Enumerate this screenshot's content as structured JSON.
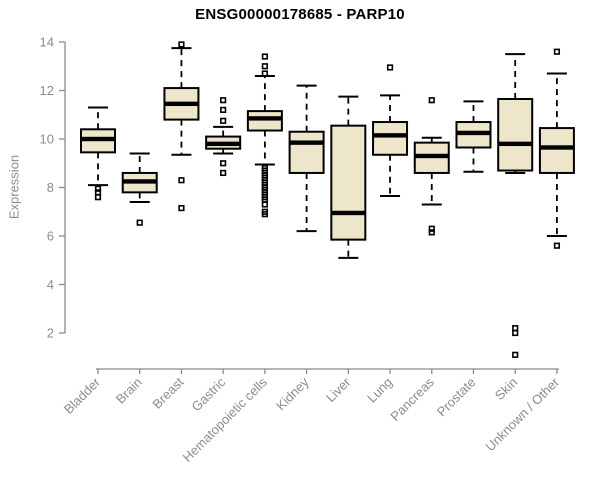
{
  "chart_data": {
    "type": "boxplot",
    "title": "ENSG00000178685 - PARP10",
    "ylabel": "Expression",
    "ylim": [
      2,
      14
    ],
    "yticks": [
      2,
      4,
      6,
      8,
      10,
      12,
      14
    ],
    "grid": false,
    "legend": null,
    "categories": [
      "Bladder",
      "Brain",
      "Breast",
      "Gastric",
      "Hematopoietic cells",
      "Kidney",
      "Liver",
      "Lung",
      "Pancreas",
      "Prostate",
      "Skin",
      "Unknown / Other"
    ],
    "boxes": [
      {
        "category": "Bladder",
        "whisker_low": 8.1,
        "q1": 9.45,
        "median": 10.0,
        "q3": 10.4,
        "whisker_high": 11.3,
        "outliers": [
          7.95,
          7.8,
          7.6
        ]
      },
      {
        "category": "Brain",
        "whisker_low": 7.4,
        "q1": 7.8,
        "median": 8.25,
        "q3": 8.6,
        "whisker_high": 9.4,
        "outliers": [
          6.55
        ]
      },
      {
        "category": "Breast",
        "whisker_low": 9.35,
        "q1": 10.8,
        "median": 11.45,
        "q3": 12.1,
        "whisker_high": 13.75,
        "outliers": [
          13.9,
          8.3,
          7.15
        ]
      },
      {
        "category": "Gastric",
        "whisker_low": 9.4,
        "q1": 9.6,
        "median": 9.8,
        "q3": 10.1,
        "whisker_high": 10.5,
        "outliers": [
          11.6,
          11.2,
          10.75,
          9.0,
          8.6
        ]
      },
      {
        "category": "Hematopoietic cells",
        "whisker_low": 8.95,
        "q1": 10.35,
        "median": 10.85,
        "q3": 11.15,
        "whisker_high": 12.6,
        "outliers": [
          13.4,
          13.0,
          12.7,
          8.8,
          8.7,
          8.6,
          8.5,
          8.4,
          8.3,
          8.2,
          8.1,
          8.0,
          7.9,
          7.8,
          7.7,
          7.6,
          7.5,
          7.3,
          7.0,
          6.9
        ]
      },
      {
        "category": "Kidney",
        "whisker_low": 6.2,
        "q1": 8.6,
        "median": 9.85,
        "q3": 10.3,
        "whisker_high": 12.2,
        "outliers": []
      },
      {
        "category": "Liver",
        "whisker_low": 5.1,
        "q1": 5.85,
        "median": 6.95,
        "q3": 10.55,
        "whisker_high": 11.75,
        "outliers": []
      },
      {
        "category": "Lung",
        "whisker_low": 7.65,
        "q1": 9.35,
        "median": 10.15,
        "q3": 10.7,
        "whisker_high": 11.8,
        "outliers": [
          12.95
        ]
      },
      {
        "category": "Pancreas",
        "whisker_low": 7.3,
        "q1": 8.6,
        "median": 9.3,
        "q3": 9.85,
        "whisker_high": 10.05,
        "outliers": [
          11.6,
          6.3,
          6.15
        ]
      },
      {
        "category": "Prostate",
        "whisker_low": 8.65,
        "q1": 9.65,
        "median": 10.25,
        "q3": 10.7,
        "whisker_high": 11.55,
        "outliers": []
      },
      {
        "category": "Skin",
        "whisker_low": 8.6,
        "q1": 8.7,
        "median": 9.8,
        "q3": 11.65,
        "whisker_high": 13.5,
        "outliers": [
          2.2,
          2.0,
          1.1
        ]
      },
      {
        "category": "Unknown / Other",
        "whisker_low": 6.0,
        "q1": 8.6,
        "median": 9.65,
        "q3": 10.45,
        "whisker_high": 12.7,
        "outliers": [
          13.6,
          5.6
        ]
      }
    ],
    "colors": {
      "box_fill": "#EDE6CB",
      "box_border": "#000000",
      "median": "#000000",
      "whisker": "#000000",
      "outlier": "#000000",
      "axis": "#8C8C8C",
      "tick_text": "#8C8C8C",
      "title_text": "#000000",
      "background": "#FFFFFF"
    }
  }
}
